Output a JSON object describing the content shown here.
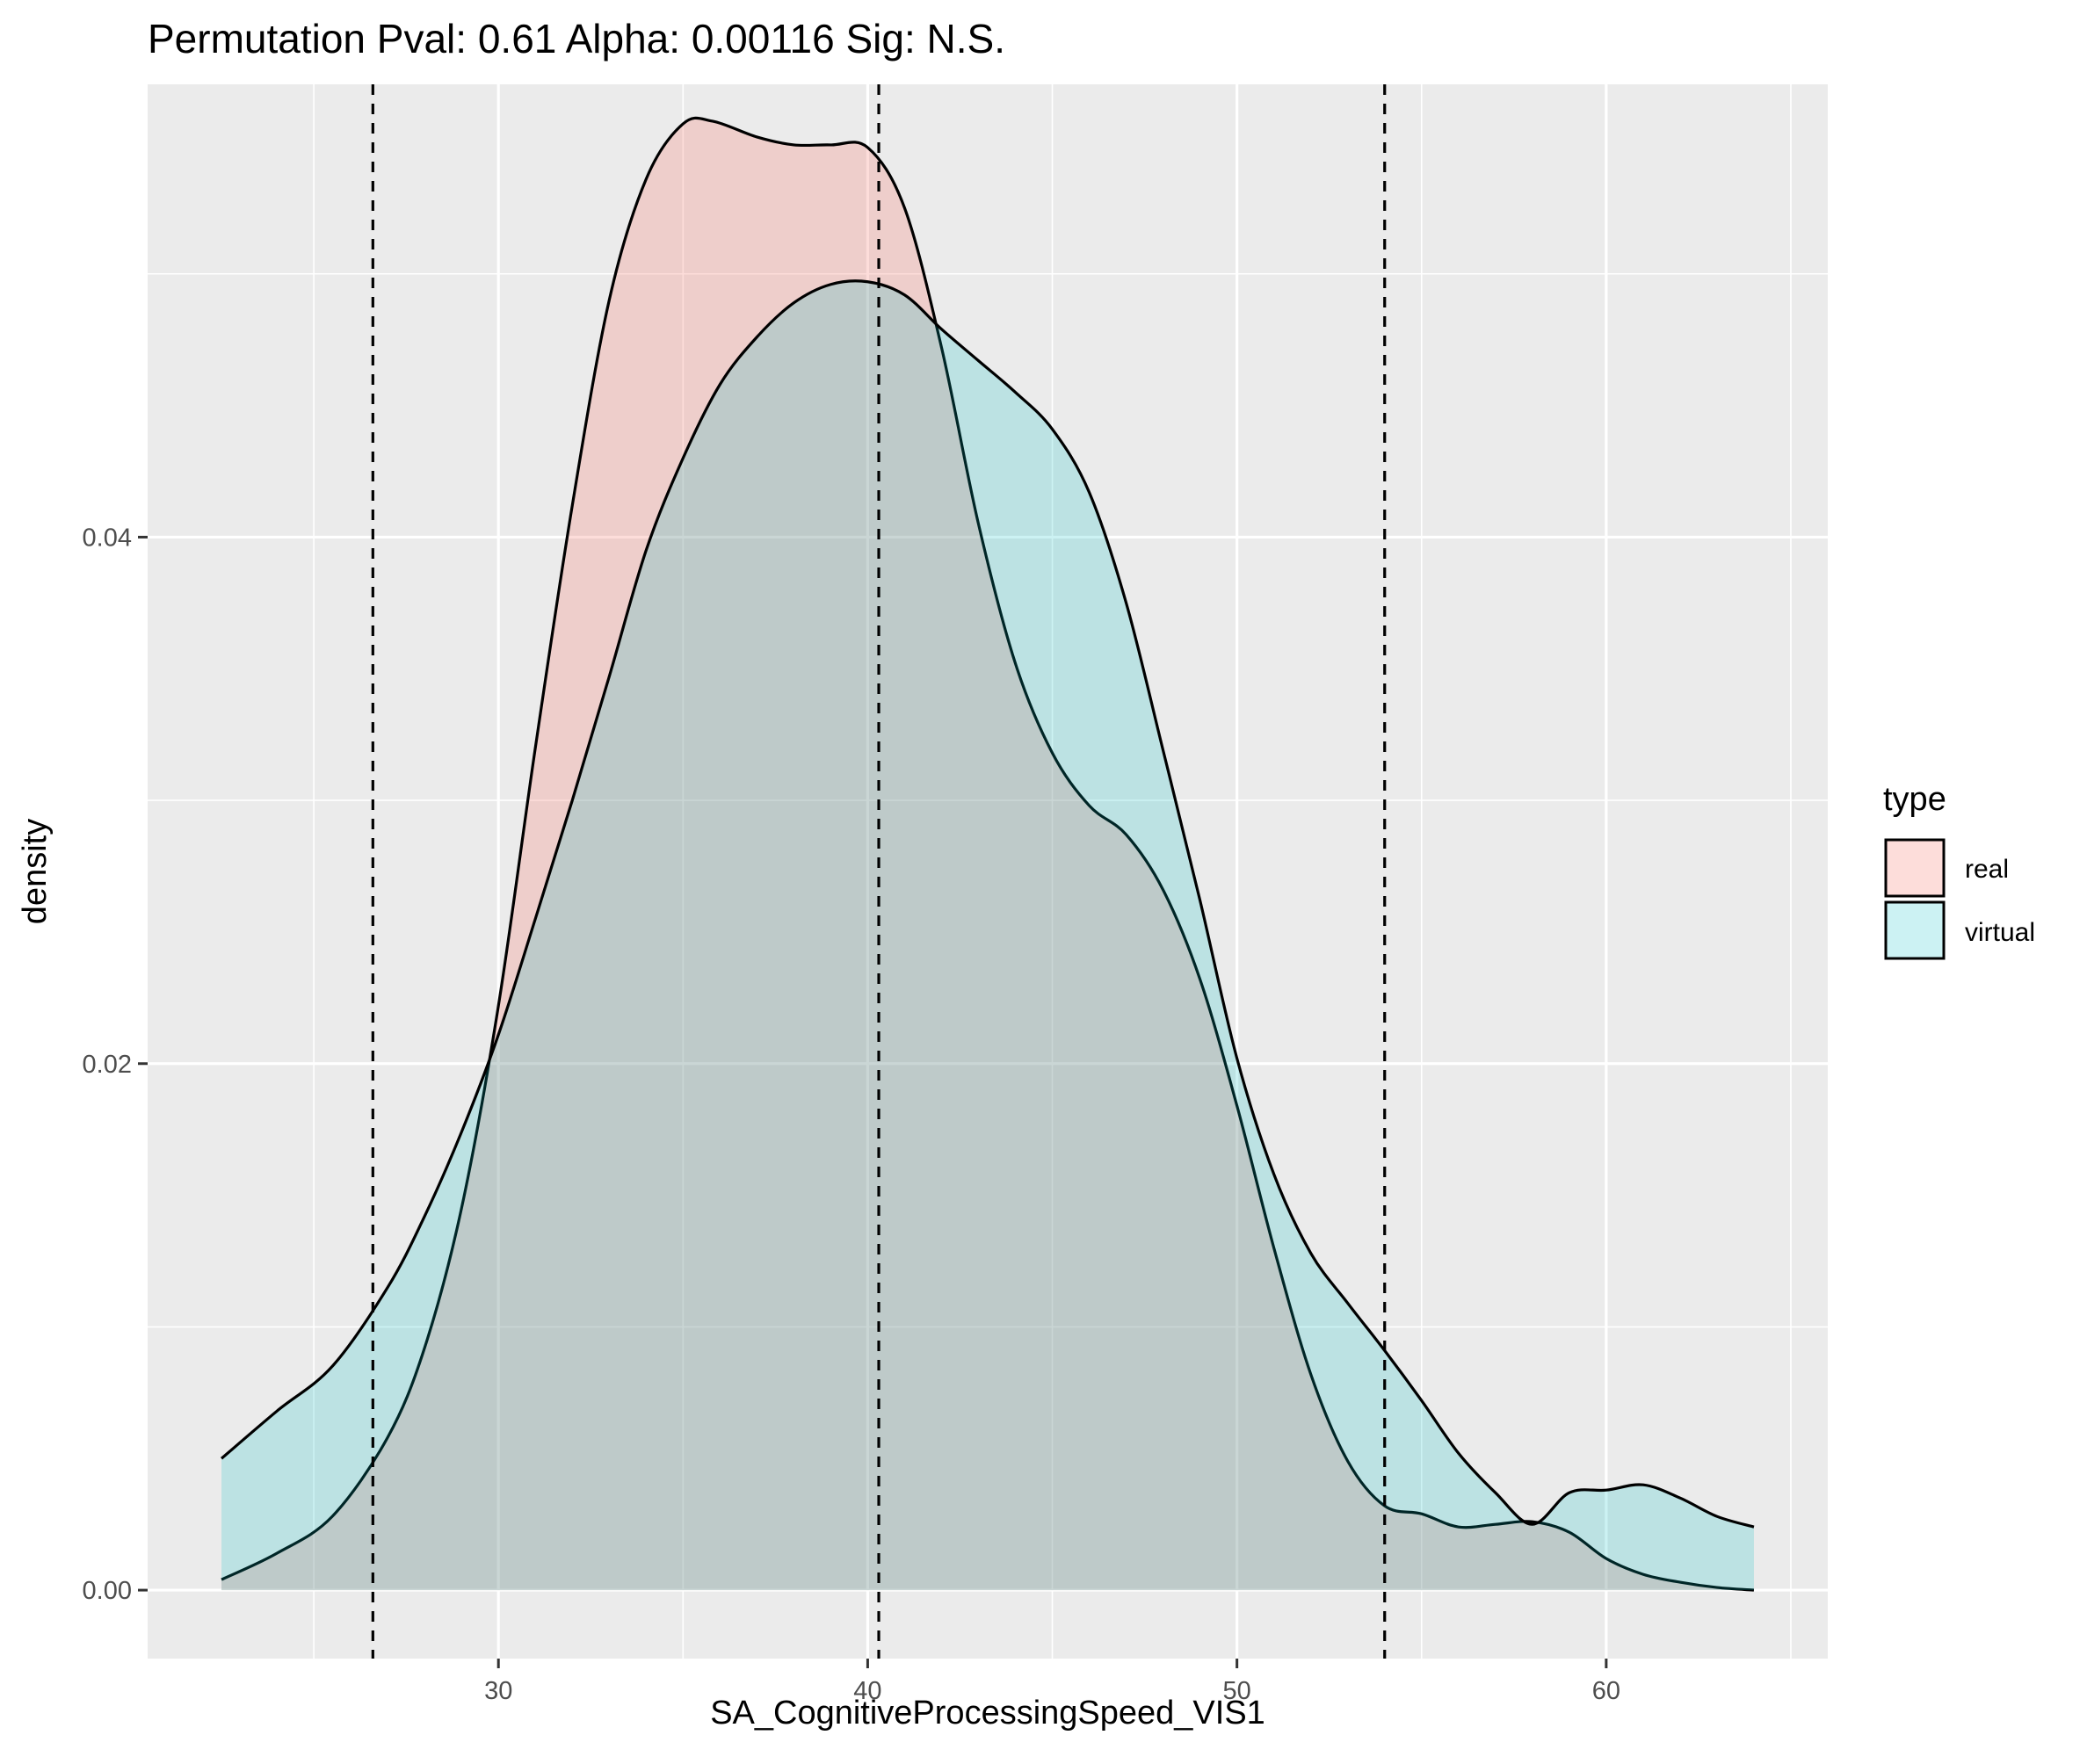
{
  "chart_data": {
    "type": "area",
    "title": "Permutation Pval: 0.61 Alpha: 0.00116 Sig: N.S.",
    "xlabel": "SA_CognitiveProcessingSpeed_VIS1",
    "ylabel": "density",
    "xlim": [
      20.5,
      66
    ],
    "ylim": [
      -0.0026,
      0.0572
    ],
    "x_ticks": [
      30,
      40,
      50,
      60
    ],
    "x_tick_labels": [
      "30",
      "40",
      "50",
      "60"
    ],
    "y_ticks": [
      0.0,
      0.02,
      0.04
    ],
    "y_tick_labels": [
      "0.00",
      "0.02",
      "0.04"
    ],
    "grid": true,
    "legend": {
      "title": "type",
      "position": "right",
      "entries": [
        {
          "label": "real",
          "color": "#f8766d"
        },
        {
          "label": "virtual",
          "color": "#00bfc4"
        }
      ]
    },
    "series": [
      {
        "name": "real",
        "fill": "#f8766d",
        "fill_opacity": 0.25,
        "x": [
          22.5,
          24,
          25.5,
          27,
          28,
          29,
          30,
          31,
          32,
          33,
          34,
          35,
          35.8,
          37,
          38,
          39,
          40,
          41,
          42,
          43,
          44,
          45,
          46,
          47,
          48,
          49,
          50,
          51,
          52,
          53,
          54,
          55,
          56,
          57,
          58,
          59,
          60,
          61,
          62,
          63,
          64
        ],
        "y": [
          0.0004,
          0.0014,
          0.0028,
          0.0058,
          0.0092,
          0.0145,
          0.0222,
          0.032,
          0.0412,
          0.049,
          0.0536,
          0.0557,
          0.0558,
          0.0552,
          0.0549,
          0.0549,
          0.0548,
          0.0525,
          0.0472,
          0.0405,
          0.0352,
          0.0318,
          0.0298,
          0.0287,
          0.0266,
          0.0232,
          0.0184,
          0.013,
          0.0082,
          0.0049,
          0.0032,
          0.0029,
          0.0024,
          0.0025,
          0.0026,
          0.0022,
          0.0012,
          0.0006,
          0.0003,
          0.0001,
          0.0
        ]
      },
      {
        "name": "virtual",
        "fill": "#00bfc4",
        "fill_opacity": 0.2,
        "x": [
          22.5,
          24,
          25.5,
          27,
          28,
          29,
          30,
          31,
          32,
          33,
          34,
          35,
          36,
          37,
          38,
          39,
          40,
          41,
          42,
          43,
          44,
          45,
          46,
          47,
          48,
          49,
          50,
          51,
          52,
          53,
          54,
          55,
          56,
          57,
          58,
          59,
          60,
          61,
          62,
          63,
          64
        ],
        "y": [
          0.005,
          0.0068,
          0.0085,
          0.0115,
          0.0142,
          0.0174,
          0.0211,
          0.0255,
          0.03,
          0.0347,
          0.0395,
          0.043,
          0.0458,
          0.0476,
          0.0489,
          0.0496,
          0.0497,
          0.0492,
          0.0479,
          0.0467,
          0.0455,
          0.0441,
          0.0417,
          0.0375,
          0.0319,
          0.0262,
          0.0202,
          0.0158,
          0.0128,
          0.0109,
          0.0091,
          0.0072,
          0.0052,
          0.0037,
          0.0025,
          0.0037,
          0.0038,
          0.004,
          0.0035,
          0.0028,
          0.0024
        ]
      }
    ],
    "vlines": [
      26.6,
      40.3,
      54.0
    ],
    "vline_style": "dashed"
  }
}
